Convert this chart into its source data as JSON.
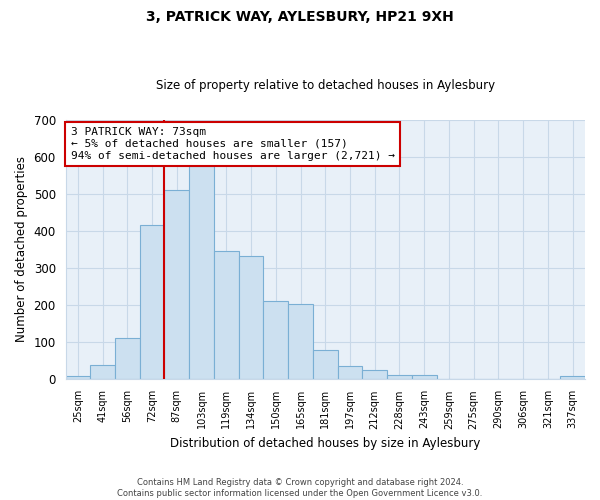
{
  "title": "3, PATRICK WAY, AYLESBURY, HP21 9XH",
  "subtitle": "Size of property relative to detached houses in Aylesbury",
  "xlabel": "Distribution of detached houses by size in Aylesbury",
  "ylabel": "Number of detached properties",
  "bar_labels": [
    "25sqm",
    "41sqm",
    "56sqm",
    "72sqm",
    "87sqm",
    "103sqm",
    "119sqm",
    "134sqm",
    "150sqm",
    "165sqm",
    "181sqm",
    "197sqm",
    "212sqm",
    "228sqm",
    "243sqm",
    "259sqm",
    "275sqm",
    "290sqm",
    "306sqm",
    "321sqm",
    "337sqm"
  ],
  "bar_values": [
    8,
    38,
    112,
    415,
    510,
    575,
    345,
    332,
    212,
    202,
    80,
    37,
    26,
    12,
    13,
    0,
    0,
    0,
    0,
    2,
    8
  ],
  "bar_color": "#cce0f0",
  "bar_edge_color": "#7aafd4",
  "ylim": [
    0,
    700
  ],
  "yticks": [
    0,
    100,
    200,
    300,
    400,
    500,
    600,
    700
  ],
  "annotation_title": "3 PATRICK WAY: 73sqm",
  "annotation_line1": "← 5% of detached houses are smaller (157)",
  "annotation_line2": "94% of semi-detached houses are larger (2,721) →",
  "annotation_box_color": "#ffffff",
  "annotation_box_edge": "#cc0000",
  "red_line_color": "#cc0000",
  "footer_line1": "Contains HM Land Registry data © Crown copyright and database right 2024.",
  "footer_line2": "Contains public sector information licensed under the Open Government Licence v3.0.",
  "background_color": "#ffffff",
  "plot_bg_color": "#e8f0f8",
  "grid_color": "#c8d8e8"
}
